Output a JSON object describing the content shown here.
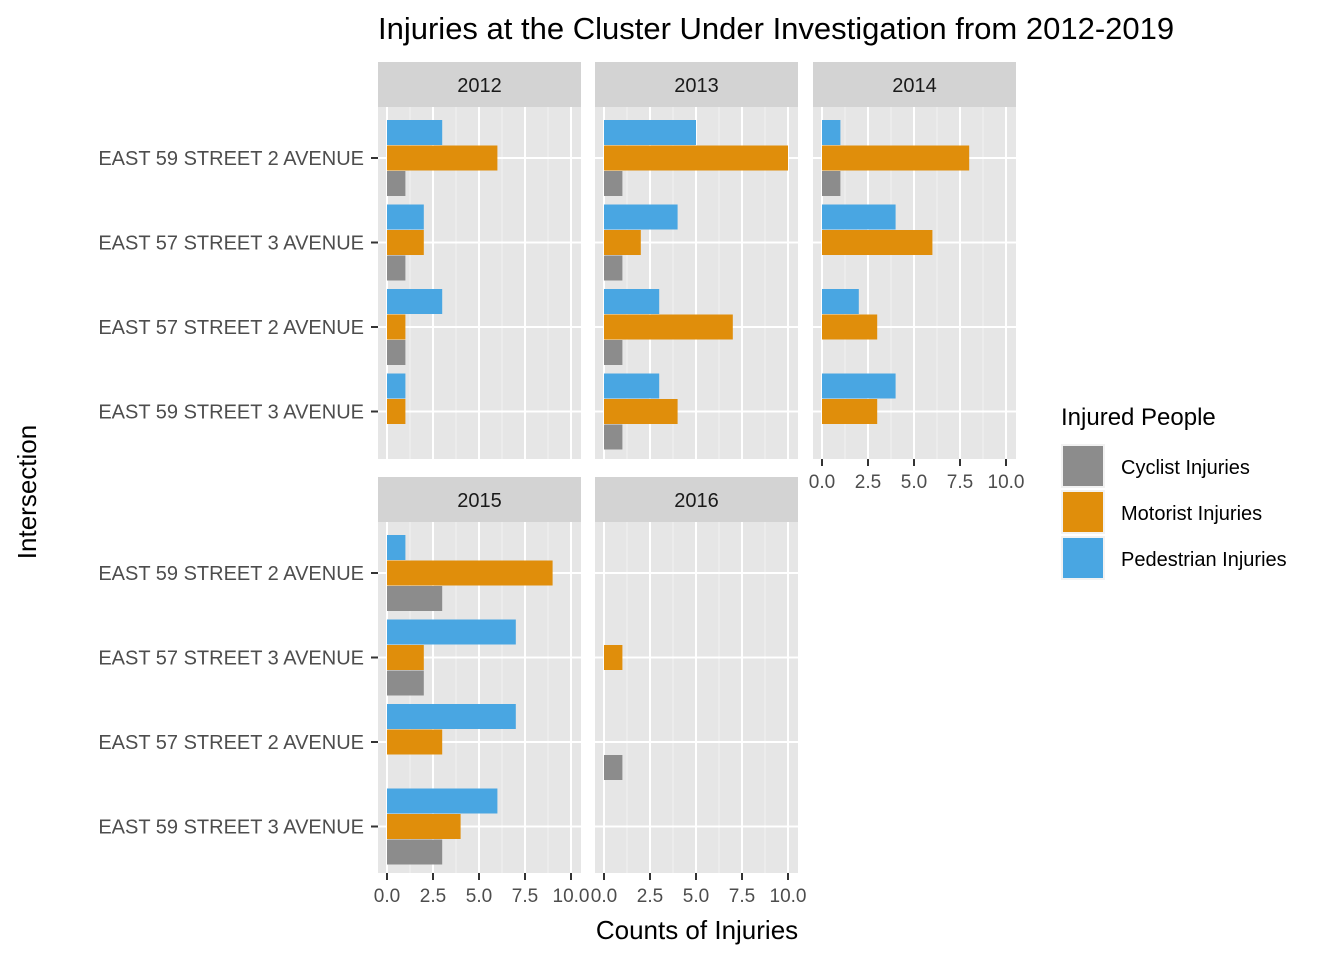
{
  "chart_data": {
    "type": "bar",
    "orientation": "horizontal",
    "faceted": true,
    "title": "Injuries at the Cluster Under Investigation from 2012-2019",
    "xlabel": "Counts of Injuries",
    "ylabel": "Intersection",
    "xlim": [
      0,
      10
    ],
    "x_ticks": [
      "0.0",
      "2.5",
      "5.0",
      "7.5",
      "10.0"
    ],
    "categories": [
      "EAST 59 STREET 2 AVENUE",
      "EAST 57 STREET 3 AVENUE",
      "EAST 57 STREET 2 AVENUE",
      "EAST 59 STREET 3 AVENUE"
    ],
    "legend": {
      "title": "Injured People",
      "placement": "right",
      "entries": [
        {
          "name": "Cyclist Injuries",
          "color": "#8c8c8c"
        },
        {
          "name": "Motorist Injuries",
          "color": "#e08e0b"
        },
        {
          "name": "Pedestrian Injuries",
          "color": "#49a6e2"
        }
      ]
    },
    "grid": true,
    "panel_background": "#e6e6e6",
    "strip_background": "#d3d3d3",
    "facets": [
      {
        "label": "2012",
        "series": [
          {
            "name": "Pedestrian Injuries",
            "values": [
              3,
              2,
              3,
              1
            ]
          },
          {
            "name": "Motorist Injuries",
            "values": [
              6,
              2,
              1,
              1
            ]
          },
          {
            "name": "Cyclist Injuries",
            "values": [
              1,
              1,
              1,
              0
            ]
          }
        ]
      },
      {
        "label": "2013",
        "series": [
          {
            "name": "Pedestrian Injuries",
            "values": [
              5,
              4,
              3,
              3
            ]
          },
          {
            "name": "Motorist Injuries",
            "values": [
              10,
              2,
              7,
              4
            ]
          },
          {
            "name": "Cyclist Injuries",
            "values": [
              1,
              1,
              1,
              1
            ]
          }
        ]
      },
      {
        "label": "2014",
        "series": [
          {
            "name": "Pedestrian Injuries",
            "values": [
              1,
              4,
              2,
              4
            ]
          },
          {
            "name": "Motorist Injuries",
            "values": [
              8,
              6,
              3,
              3
            ]
          },
          {
            "name": "Cyclist Injuries",
            "values": [
              1,
              0,
              0,
              0
            ]
          }
        ]
      },
      {
        "label": "2015",
        "series": [
          {
            "name": "Pedestrian Injuries",
            "values": [
              1,
              7,
              7,
              6
            ]
          },
          {
            "name": "Motorist Injuries",
            "values": [
              9,
              2,
              3,
              4
            ]
          },
          {
            "name": "Cyclist Injuries",
            "values": [
              3,
              2,
              0,
              3
            ]
          }
        ]
      },
      {
        "label": "2016",
        "series": [
          {
            "name": "Pedestrian Injuries",
            "values": [
              0,
              0,
              0,
              0
            ]
          },
          {
            "name": "Motorist Injuries",
            "values": [
              0,
              1,
              0,
              0
            ]
          },
          {
            "name": "Cyclist Injuries",
            "values": [
              0,
              0,
              1,
              0
            ]
          }
        ]
      }
    ]
  }
}
